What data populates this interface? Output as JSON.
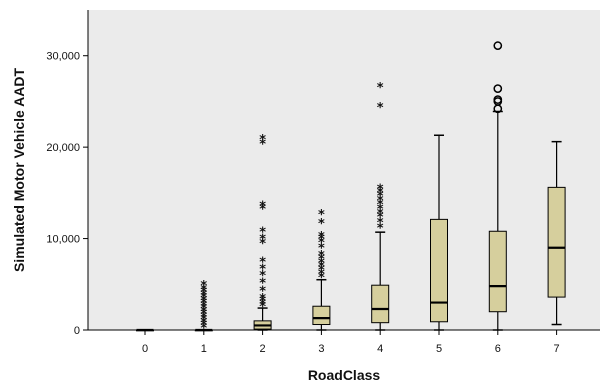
{
  "chart_data": {
    "type": "boxplot",
    "title": "",
    "xlabel": "RoadClass",
    "ylabel": "Simulated Motor Vehicle AADT",
    "ylim": [
      0,
      35000
    ],
    "yticks": [
      0,
      10000,
      20000,
      30000
    ],
    "ytick_labels": [
      "0",
      "10,000",
      "20,000",
      "30,000"
    ],
    "categories": [
      "0",
      "1",
      "2",
      "3",
      "4",
      "5",
      "6",
      "7"
    ],
    "colors": {
      "box_fill": "#d6cf9d",
      "plot_bg": "#ebebeb",
      "line": "#000000"
    },
    "boxes": [
      {
        "category": "0",
        "min": 0,
        "q1": 0,
        "median": 0,
        "q3": 0,
        "max": 0,
        "outliers": [],
        "extremes": []
      },
      {
        "category": "1",
        "min": 0,
        "q1": 0,
        "median": 0,
        "q3": 0,
        "max": 0,
        "outliers": [
          300,
          600,
          900,
          1200,
          1500,
          1800,
          2100,
          2400,
          2700,
          3000,
          3300,
          3600,
          3900,
          4200,
          4500,
          4900
        ],
        "extremes": []
      },
      {
        "category": "2",
        "min": 0,
        "q1": 100,
        "median": 500,
        "q3": 1000,
        "max": 2400,
        "outliers": [
          2600,
          2900,
          3200,
          3500,
          4300,
          5200,
          6000,
          6700,
          7500,
          9500,
          10000,
          10800,
          13300,
          13600,
          20400,
          20900
        ],
        "extremes": []
      },
      {
        "category": "3",
        "min": 0,
        "q1": 600,
        "median": 1300,
        "q3": 2600,
        "max": 5500,
        "outliers": [
          5800,
          6200,
          6600,
          7000,
          7400,
          7800,
          8200,
          9000,
          9600,
          10000,
          10300,
          11700,
          12700
        ],
        "extremes": []
      },
      {
        "category": "4",
        "min": 0,
        "q1": 800,
        "median": 2300,
        "q3": 4900,
        "max": 10700,
        "outliers": [
          11200,
          11800,
          12400,
          12800,
          13300,
          13800,
          14200,
          14700,
          15100,
          15500,
          24400,
          26600
        ],
        "extremes": []
      },
      {
        "category": "5",
        "min": 0,
        "q1": 900,
        "median": 3000,
        "q3": 12100,
        "max": 21300,
        "outliers": [],
        "extremes": []
      },
      {
        "category": "6",
        "min": 0,
        "q1": 2000,
        "median": 4800,
        "q3": 10800,
        "max": 23900,
        "outliers": [],
        "extremes": [
          24200,
          25000,
          25200,
          26400,
          31100
        ]
      },
      {
        "category": "7",
        "min": 600,
        "q1": 3600,
        "median": 9000,
        "q3": 15600,
        "max": 20600,
        "outliers": [],
        "extremes": []
      }
    ]
  }
}
